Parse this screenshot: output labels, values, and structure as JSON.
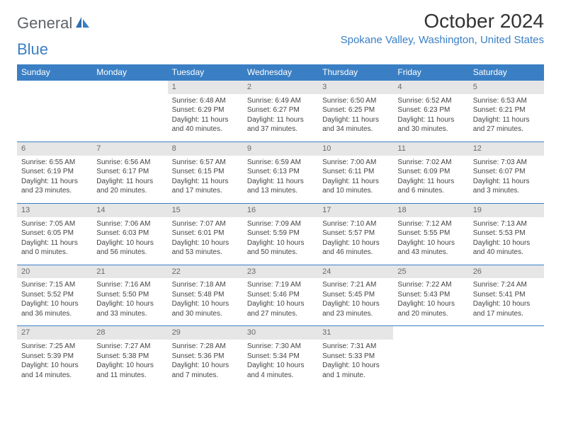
{
  "logo": {
    "general": "General",
    "blue": "Blue"
  },
  "title": "October 2024",
  "location": "Spokane Valley, Washington, United States",
  "colors": {
    "accent": "#3a7fc4",
    "header_text": "#ffffff",
    "daynum_bg": "#e6e6e6"
  },
  "day_headers": [
    "Sunday",
    "Monday",
    "Tuesday",
    "Wednesday",
    "Thursday",
    "Friday",
    "Saturday"
  ],
  "weeks": [
    [
      {
        "n": "",
        "sr": "",
        "ss": "",
        "dl1": "",
        "dl2": ""
      },
      {
        "n": "",
        "sr": "",
        "ss": "",
        "dl1": "",
        "dl2": ""
      },
      {
        "n": "1",
        "sr": "Sunrise: 6:48 AM",
        "ss": "Sunset: 6:29 PM",
        "dl1": "Daylight: 11 hours",
        "dl2": "and 40 minutes."
      },
      {
        "n": "2",
        "sr": "Sunrise: 6:49 AM",
        "ss": "Sunset: 6:27 PM",
        "dl1": "Daylight: 11 hours",
        "dl2": "and 37 minutes."
      },
      {
        "n": "3",
        "sr": "Sunrise: 6:50 AM",
        "ss": "Sunset: 6:25 PM",
        "dl1": "Daylight: 11 hours",
        "dl2": "and 34 minutes."
      },
      {
        "n": "4",
        "sr": "Sunrise: 6:52 AM",
        "ss": "Sunset: 6:23 PM",
        "dl1": "Daylight: 11 hours",
        "dl2": "and 30 minutes."
      },
      {
        "n": "5",
        "sr": "Sunrise: 6:53 AM",
        "ss": "Sunset: 6:21 PM",
        "dl1": "Daylight: 11 hours",
        "dl2": "and 27 minutes."
      }
    ],
    [
      {
        "n": "6",
        "sr": "Sunrise: 6:55 AM",
        "ss": "Sunset: 6:19 PM",
        "dl1": "Daylight: 11 hours",
        "dl2": "and 23 minutes."
      },
      {
        "n": "7",
        "sr": "Sunrise: 6:56 AM",
        "ss": "Sunset: 6:17 PM",
        "dl1": "Daylight: 11 hours",
        "dl2": "and 20 minutes."
      },
      {
        "n": "8",
        "sr": "Sunrise: 6:57 AM",
        "ss": "Sunset: 6:15 PM",
        "dl1": "Daylight: 11 hours",
        "dl2": "and 17 minutes."
      },
      {
        "n": "9",
        "sr": "Sunrise: 6:59 AM",
        "ss": "Sunset: 6:13 PM",
        "dl1": "Daylight: 11 hours",
        "dl2": "and 13 minutes."
      },
      {
        "n": "10",
        "sr": "Sunrise: 7:00 AM",
        "ss": "Sunset: 6:11 PM",
        "dl1": "Daylight: 11 hours",
        "dl2": "and 10 minutes."
      },
      {
        "n": "11",
        "sr": "Sunrise: 7:02 AM",
        "ss": "Sunset: 6:09 PM",
        "dl1": "Daylight: 11 hours",
        "dl2": "and 6 minutes."
      },
      {
        "n": "12",
        "sr": "Sunrise: 7:03 AM",
        "ss": "Sunset: 6:07 PM",
        "dl1": "Daylight: 11 hours",
        "dl2": "and 3 minutes."
      }
    ],
    [
      {
        "n": "13",
        "sr": "Sunrise: 7:05 AM",
        "ss": "Sunset: 6:05 PM",
        "dl1": "Daylight: 11 hours",
        "dl2": "and 0 minutes."
      },
      {
        "n": "14",
        "sr": "Sunrise: 7:06 AM",
        "ss": "Sunset: 6:03 PM",
        "dl1": "Daylight: 10 hours",
        "dl2": "and 56 minutes."
      },
      {
        "n": "15",
        "sr": "Sunrise: 7:07 AM",
        "ss": "Sunset: 6:01 PM",
        "dl1": "Daylight: 10 hours",
        "dl2": "and 53 minutes."
      },
      {
        "n": "16",
        "sr": "Sunrise: 7:09 AM",
        "ss": "Sunset: 5:59 PM",
        "dl1": "Daylight: 10 hours",
        "dl2": "and 50 minutes."
      },
      {
        "n": "17",
        "sr": "Sunrise: 7:10 AM",
        "ss": "Sunset: 5:57 PM",
        "dl1": "Daylight: 10 hours",
        "dl2": "and 46 minutes."
      },
      {
        "n": "18",
        "sr": "Sunrise: 7:12 AM",
        "ss": "Sunset: 5:55 PM",
        "dl1": "Daylight: 10 hours",
        "dl2": "and 43 minutes."
      },
      {
        "n": "19",
        "sr": "Sunrise: 7:13 AM",
        "ss": "Sunset: 5:53 PM",
        "dl1": "Daylight: 10 hours",
        "dl2": "and 40 minutes."
      }
    ],
    [
      {
        "n": "20",
        "sr": "Sunrise: 7:15 AM",
        "ss": "Sunset: 5:52 PM",
        "dl1": "Daylight: 10 hours",
        "dl2": "and 36 minutes."
      },
      {
        "n": "21",
        "sr": "Sunrise: 7:16 AM",
        "ss": "Sunset: 5:50 PM",
        "dl1": "Daylight: 10 hours",
        "dl2": "and 33 minutes."
      },
      {
        "n": "22",
        "sr": "Sunrise: 7:18 AM",
        "ss": "Sunset: 5:48 PM",
        "dl1": "Daylight: 10 hours",
        "dl2": "and 30 minutes."
      },
      {
        "n": "23",
        "sr": "Sunrise: 7:19 AM",
        "ss": "Sunset: 5:46 PM",
        "dl1": "Daylight: 10 hours",
        "dl2": "and 27 minutes."
      },
      {
        "n": "24",
        "sr": "Sunrise: 7:21 AM",
        "ss": "Sunset: 5:45 PM",
        "dl1": "Daylight: 10 hours",
        "dl2": "and 23 minutes."
      },
      {
        "n": "25",
        "sr": "Sunrise: 7:22 AM",
        "ss": "Sunset: 5:43 PM",
        "dl1": "Daylight: 10 hours",
        "dl2": "and 20 minutes."
      },
      {
        "n": "26",
        "sr": "Sunrise: 7:24 AM",
        "ss": "Sunset: 5:41 PM",
        "dl1": "Daylight: 10 hours",
        "dl2": "and 17 minutes."
      }
    ],
    [
      {
        "n": "27",
        "sr": "Sunrise: 7:25 AM",
        "ss": "Sunset: 5:39 PM",
        "dl1": "Daylight: 10 hours",
        "dl2": "and 14 minutes."
      },
      {
        "n": "28",
        "sr": "Sunrise: 7:27 AM",
        "ss": "Sunset: 5:38 PM",
        "dl1": "Daylight: 10 hours",
        "dl2": "and 11 minutes."
      },
      {
        "n": "29",
        "sr": "Sunrise: 7:28 AM",
        "ss": "Sunset: 5:36 PM",
        "dl1": "Daylight: 10 hours",
        "dl2": "and 7 minutes."
      },
      {
        "n": "30",
        "sr": "Sunrise: 7:30 AM",
        "ss": "Sunset: 5:34 PM",
        "dl1": "Daylight: 10 hours",
        "dl2": "and 4 minutes."
      },
      {
        "n": "31",
        "sr": "Sunrise: 7:31 AM",
        "ss": "Sunset: 5:33 PM",
        "dl1": "Daylight: 10 hours",
        "dl2": "and 1 minute."
      },
      {
        "n": "",
        "sr": "",
        "ss": "",
        "dl1": "",
        "dl2": ""
      },
      {
        "n": "",
        "sr": "",
        "ss": "",
        "dl1": "",
        "dl2": ""
      }
    ]
  ]
}
